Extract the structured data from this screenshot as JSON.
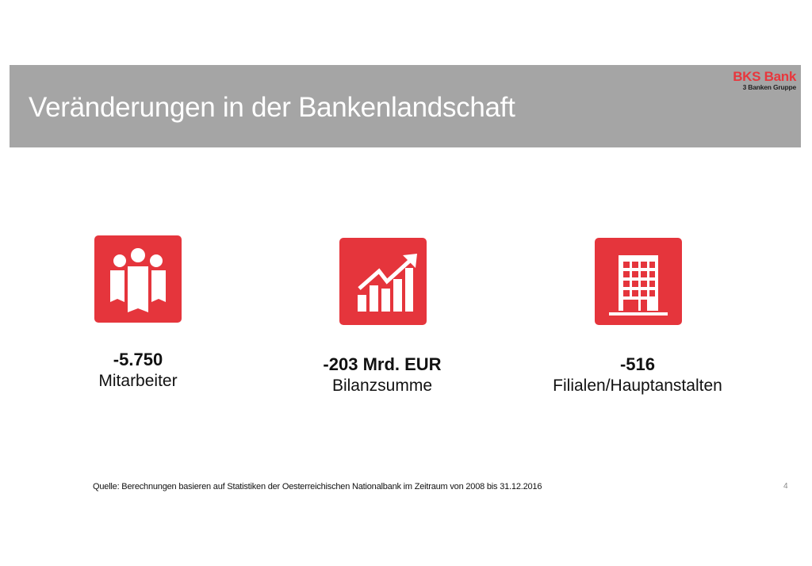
{
  "header": {
    "title": "Veränderungen in der Bankenlandschaft",
    "logo_main": "BKS Bank",
    "logo_sub": "3 Banken Gruppe"
  },
  "colors": {
    "accent": "#e5353c",
    "banner": "#a5a5a5",
    "logo_red": "#e8373d"
  },
  "stats": [
    {
      "icon": "people-icon",
      "value": "-5.750",
      "label": "Mitarbeiter"
    },
    {
      "icon": "growth-chart-icon",
      "value": "-203 Mrd. EUR",
      "label": "Bilanzsumme"
    },
    {
      "icon": "building-icon",
      "value": "-516",
      "label": "Filialen/Hauptanstalten"
    }
  ],
  "footer": {
    "source": "Quelle: Berechnungen basieren auf Statistiken der Oesterreichischen Nationalbank im Zeitraum von 2008 bis 31.12.2016",
    "page_number": "4"
  }
}
